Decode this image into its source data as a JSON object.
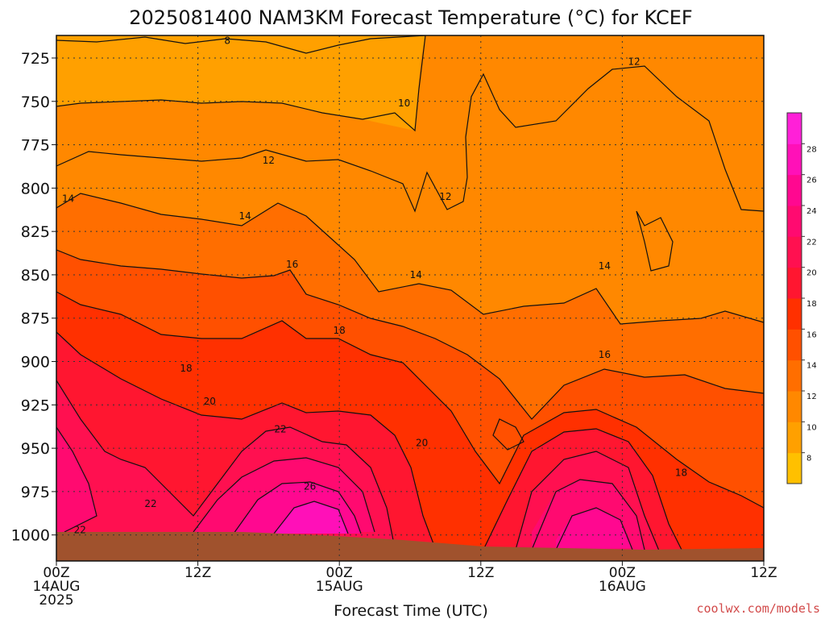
{
  "chart_data": {
    "type": "heatmap",
    "title": "2025081400 NAM3KM Forecast Temperature (°C) for KCEF",
    "xlabel": "Forecast Time (UTC)",
    "ylabel": "",
    "y_axis": {
      "ticks": [
        725,
        750,
        775,
        800,
        825,
        850,
        875,
        900,
        925,
        950,
        975,
        1000
      ],
      "range": [
        1015,
        712
      ],
      "units": "hPa"
    },
    "x_axis": {
      "range_hours": [
        0,
        60
      ],
      "ticks": [
        {
          "hour": 0,
          "lines": [
            "00Z",
            "14AUG",
            "2025"
          ]
        },
        {
          "hour": 12,
          "lines": [
            "12Z"
          ]
        },
        {
          "hour": 24,
          "lines": [
            "00Z",
            "15AUG"
          ]
        },
        {
          "hour": 36,
          "lines": [
            "12Z"
          ]
        },
        {
          "hour": 48,
          "lines": [
            "00Z",
            "16AUG"
          ]
        },
        {
          "hour": 60,
          "lines": [
            "12Z"
          ]
        }
      ]
    },
    "grid": true,
    "colorbar": {
      "placement": "right",
      "ticks": [
        8,
        10,
        12,
        14,
        16,
        18,
        20,
        22,
        24,
        26,
        28
      ],
      "colors": [
        "#ffc000",
        "#ffa000",
        "#ff8800",
        "#ff6e00",
        "#ff5000",
        "#ff3000",
        "#ff1630",
        "#ff1050",
        "#ff0a70",
        "#ff0890",
        "#ff10b8",
        "#ff20d8"
      ]
    },
    "terrain_color": "#a0522d",
    "contour_labels": [
      {
        "text": "8",
        "hour": 14.5,
        "p": 715
      },
      {
        "text": "10",
        "hour": 29.5,
        "p": 751
      },
      {
        "text": "12",
        "hour": 49.0,
        "p": 727
      },
      {
        "text": "12",
        "hour": 18.0,
        "p": 784
      },
      {
        "text": "12",
        "hour": 33.0,
        "p": 805
      },
      {
        "text": "14",
        "hour": 1.0,
        "p": 806
      },
      {
        "text": "14",
        "hour": 16.0,
        "p": 816
      },
      {
        "text": "14",
        "hour": 30.5,
        "p": 850
      },
      {
        "text": "14",
        "hour": 46.5,
        "p": 845
      },
      {
        "text": "16",
        "hour": 20.0,
        "p": 844
      },
      {
        "text": "16",
        "hour": 46.5,
        "p": 896
      },
      {
        "text": "18",
        "hour": 24.0,
        "p": 882
      },
      {
        "text": "18",
        "hour": 11.0,
        "p": 904
      },
      {
        "text": "18",
        "hour": 53.0,
        "p": 964
      },
      {
        "text": "20",
        "hour": 13.0,
        "p": 923
      },
      {
        "text": "20",
        "hour": 31.0,
        "p": 947
      },
      {
        "text": "22",
        "hour": 19.0,
        "p": 939
      },
      {
        "text": "22",
        "hour": 8.0,
        "p": 982
      },
      {
        "text": "22",
        "hour": 2.0,
        "p": 997
      },
      {
        "text": "26",
        "hour": 21.5,
        "p": 972
      }
    ]
  },
  "credit": "coolwx.com/models"
}
